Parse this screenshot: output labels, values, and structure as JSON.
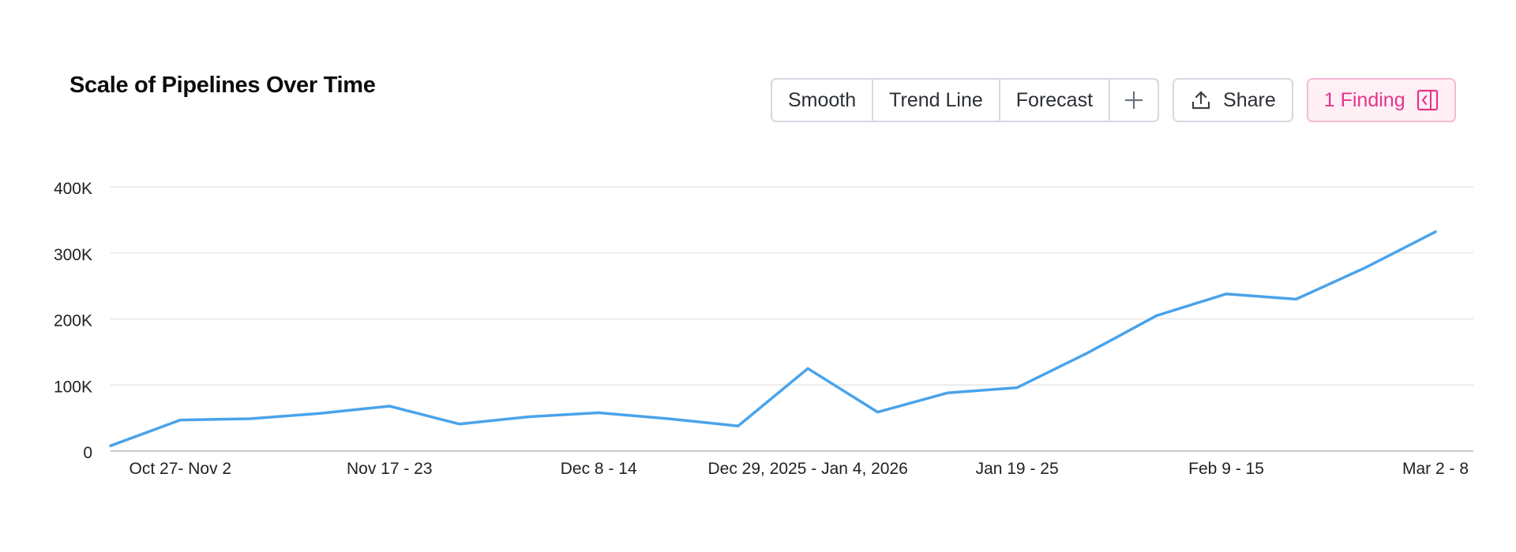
{
  "chart_data": {
    "type": "line",
    "title": "Scale of Pipelines Over Time",
    "xlabel": "",
    "ylabel": "",
    "ylim": [
      0,
      400000
    ],
    "yticks": [
      {
        "value": 0,
        "label": "0"
      },
      {
        "value": 100000,
        "label": "100K"
      },
      {
        "value": 200000,
        "label": "200K"
      },
      {
        "value": 300000,
        "label": "300K"
      },
      {
        "value": 400000,
        "label": "400K"
      }
    ],
    "xtick_labels": [
      {
        "index": 1,
        "label": "Oct 27- Nov 2"
      },
      {
        "index": 4,
        "label": "Nov 17 - 23"
      },
      {
        "index": 7,
        "label": "Dec 8 - 14"
      },
      {
        "index": 10,
        "label": "Dec 29, 2025 - Jan 4, 2026"
      },
      {
        "index": 13,
        "label": "Jan 19 - 25"
      },
      {
        "index": 16,
        "label": "Feb 9 - 15"
      },
      {
        "index": 19,
        "label": "Mar 2 - 8"
      }
    ],
    "grid": true,
    "series": [
      {
        "color": "#4aa3ea",
        "values": [
          8000,
          47000,
          49000,
          57000,
          68000,
          41000,
          52000,
          58000,
          49000,
          38000,
          125000,
          59000,
          88000,
          96000,
          148000,
          205000,
          238000,
          230000,
          278000,
          332000
        ]
      }
    ]
  },
  "toolbar": {
    "smooth": "Smooth",
    "trend_line": "Trend Line",
    "forecast": "Forecast",
    "plus": "+",
    "share": "Share",
    "finding": "1 Finding"
  },
  "colors": {
    "accent_pink": "#e6348a",
    "line_blue": "#4aa3ea"
  }
}
